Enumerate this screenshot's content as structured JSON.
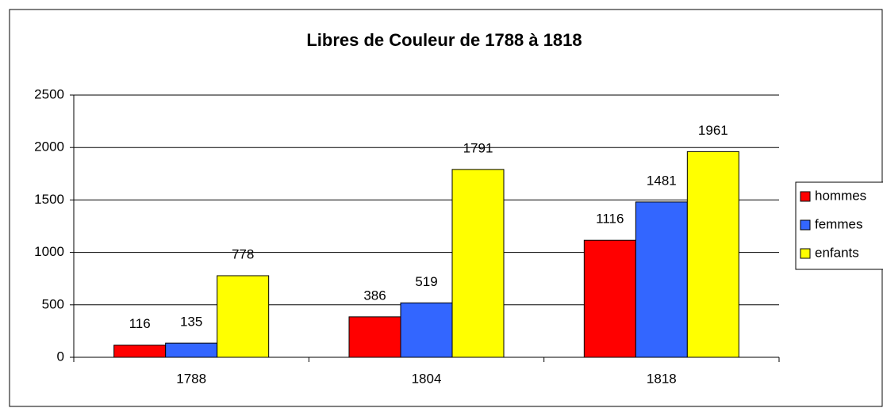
{
  "chart_data": {
    "type": "bar",
    "title": "Libres de Couleur de 1788 à 1818",
    "categories": [
      "1788",
      "1804",
      "1818"
    ],
    "series": [
      {
        "name": "hommes",
        "color": "#ff0000",
        "values": [
          116,
          386,
          1116
        ]
      },
      {
        "name": "femmes",
        "color": "#3366ff",
        "values": [
          135,
          519,
          1481
        ]
      },
      {
        "name": "enfants",
        "color": "#ffff00",
        "values": [
          778,
          1791,
          1961
        ]
      }
    ],
    "ylim": [
      0,
      2500
    ],
    "yticks": [
      0,
      500,
      1000,
      1500,
      2000,
      2500
    ],
    "grid": true,
    "legend": "right"
  }
}
